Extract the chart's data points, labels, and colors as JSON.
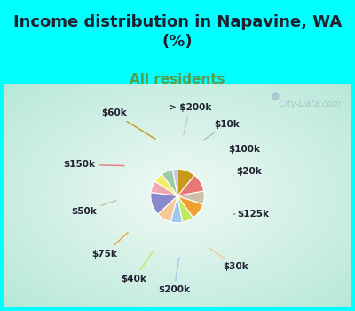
{
  "title": "Income distribution in Napavine, WA\n(%)",
  "subtitle": "All residents",
  "background_top": "#00FFFF",
  "background_chart_edge": "#b8e8d8",
  "background_chart_center": "#f0faf5",
  "labels": [
    "> $200k",
    "$10k",
    "$100k",
    "$20k",
    "$125k",
    "$30k",
    "$200k",
    "$40k",
    "$75k",
    "$50k",
    "$150k",
    "$60k"
  ],
  "values": [
    3,
    7,
    6,
    7,
    14,
    9,
    7,
    7,
    10,
    8,
    11,
    11
  ],
  "colors": [
    "#c4c4e8",
    "#9ecba8",
    "#f0ee68",
    "#f0a8b0",
    "#8888cc",
    "#f5c898",
    "#9ec8f0",
    "#c0e860",
    "#f0a030",
    "#ccc0a8",
    "#e87878",
    "#c89818"
  ],
  "watermark": "  City-Data.com",
  "label_fontsize": 7.5,
  "title_fontsize": 13,
  "subtitle_fontsize": 11,
  "title_color": "#202030",
  "subtitle_color": "#50a050",
  "label_color": "#202030"
}
